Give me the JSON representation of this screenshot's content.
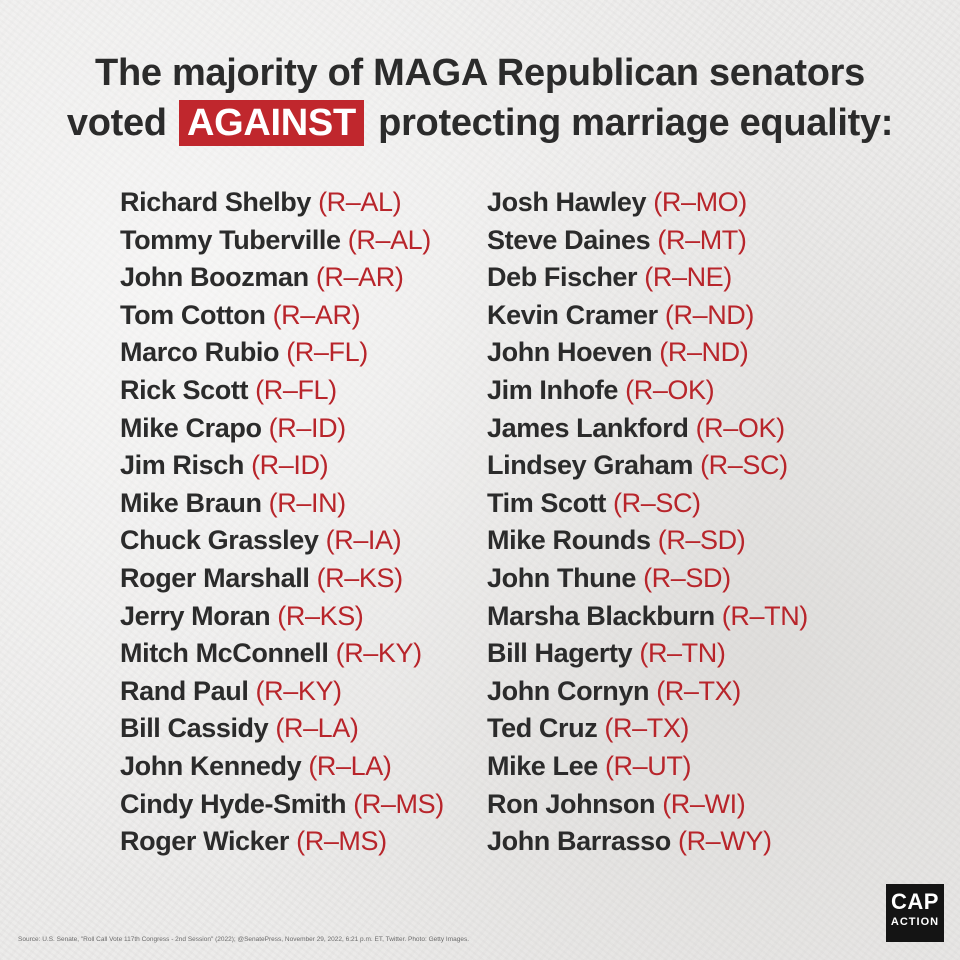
{
  "headline": {
    "line1": "The majority of MAGA Republican senators",
    "line2_pre": "voted",
    "highlight": "AGAINST",
    "line2_post": "protecting marriage equality:"
  },
  "senators_left": [
    {
      "name": "Richard Shelby",
      "party": "(R–AL)"
    },
    {
      "name": "Tommy Tuberville",
      "party": "(R–AL)"
    },
    {
      "name": "John Boozman",
      "party": "(R–AR)"
    },
    {
      "name": "Tom Cotton",
      "party": "(R–AR)"
    },
    {
      "name": "Marco Rubio",
      "party": "(R–FL)"
    },
    {
      "name": "Rick Scott",
      "party": "(R–FL)"
    },
    {
      "name": "Mike Crapo",
      "party": "(R–ID)"
    },
    {
      "name": "Jim Risch",
      "party": "(R–ID)"
    },
    {
      "name": "Mike Braun",
      "party": "(R–IN)"
    },
    {
      "name": "Chuck Grassley",
      "party": "(R–IA)"
    },
    {
      "name": "Roger Marshall",
      "party": "(R–KS)"
    },
    {
      "name": "Jerry Moran",
      "party": "(R–KS)"
    },
    {
      "name": "Mitch McConnell",
      "party": "(R–KY)"
    },
    {
      "name": "Rand Paul",
      "party": "(R–KY)"
    },
    {
      "name": "Bill Cassidy",
      "party": "(R–LA)"
    },
    {
      "name": "John Kennedy",
      "party": "(R–LA)"
    },
    {
      "name": "Cindy Hyde-Smith",
      "party": "(R–MS)"
    },
    {
      "name": "Roger Wicker",
      "party": "(R–MS)"
    }
  ],
  "senators_right": [
    {
      "name": "Josh Hawley",
      "party": "(R–MO)"
    },
    {
      "name": "Steve Daines",
      "party": "(R–MT)"
    },
    {
      "name": "Deb Fischer",
      "party": "(R–NE)"
    },
    {
      "name": "Kevin Cramer",
      "party": "(R–ND)"
    },
    {
      "name": "John Hoeven",
      "party": "(R–ND)"
    },
    {
      "name": "Jim Inhofe",
      "party": "(R–OK)"
    },
    {
      "name": "James Lankford",
      "party": "(R–OK)"
    },
    {
      "name": "Lindsey Graham",
      "party": "(R–SC)"
    },
    {
      "name": "Tim Scott",
      "party": "(R–SC)"
    },
    {
      "name": "Mike Rounds",
      "party": "(R–SD)"
    },
    {
      "name": "John Thune",
      "party": "(R–SD)"
    },
    {
      "name": "Marsha Blackburn",
      "party": "(R–TN)"
    },
    {
      "name": "Bill Hagerty",
      "party": "(R–TN)"
    },
    {
      "name": "John Cornyn",
      "party": "(R–TX)"
    },
    {
      "name": "Ted Cruz",
      "party": "(R–TX)"
    },
    {
      "name": "Mike Lee",
      "party": "(R–UT)"
    },
    {
      "name": "Ron Johnson",
      "party": "(R–WI)"
    },
    {
      "name": "John Barrasso",
      "party": "(R–WY)"
    }
  ],
  "source": "Source: U.S. Senate, \"Roll Call Vote 117th Congress - 2nd Session\" (2022); @SenatePress, November 29, 2022, 6:21 p.m. ET, Twitter. Photo: Getty Images.",
  "logo": {
    "top": "CAP",
    "bottom": "ACTION"
  },
  "colors": {
    "accent_red": "#c0272d",
    "text": "#2b2b2b",
    "party_red": "#b8252b",
    "logo_bg": "#141414"
  }
}
